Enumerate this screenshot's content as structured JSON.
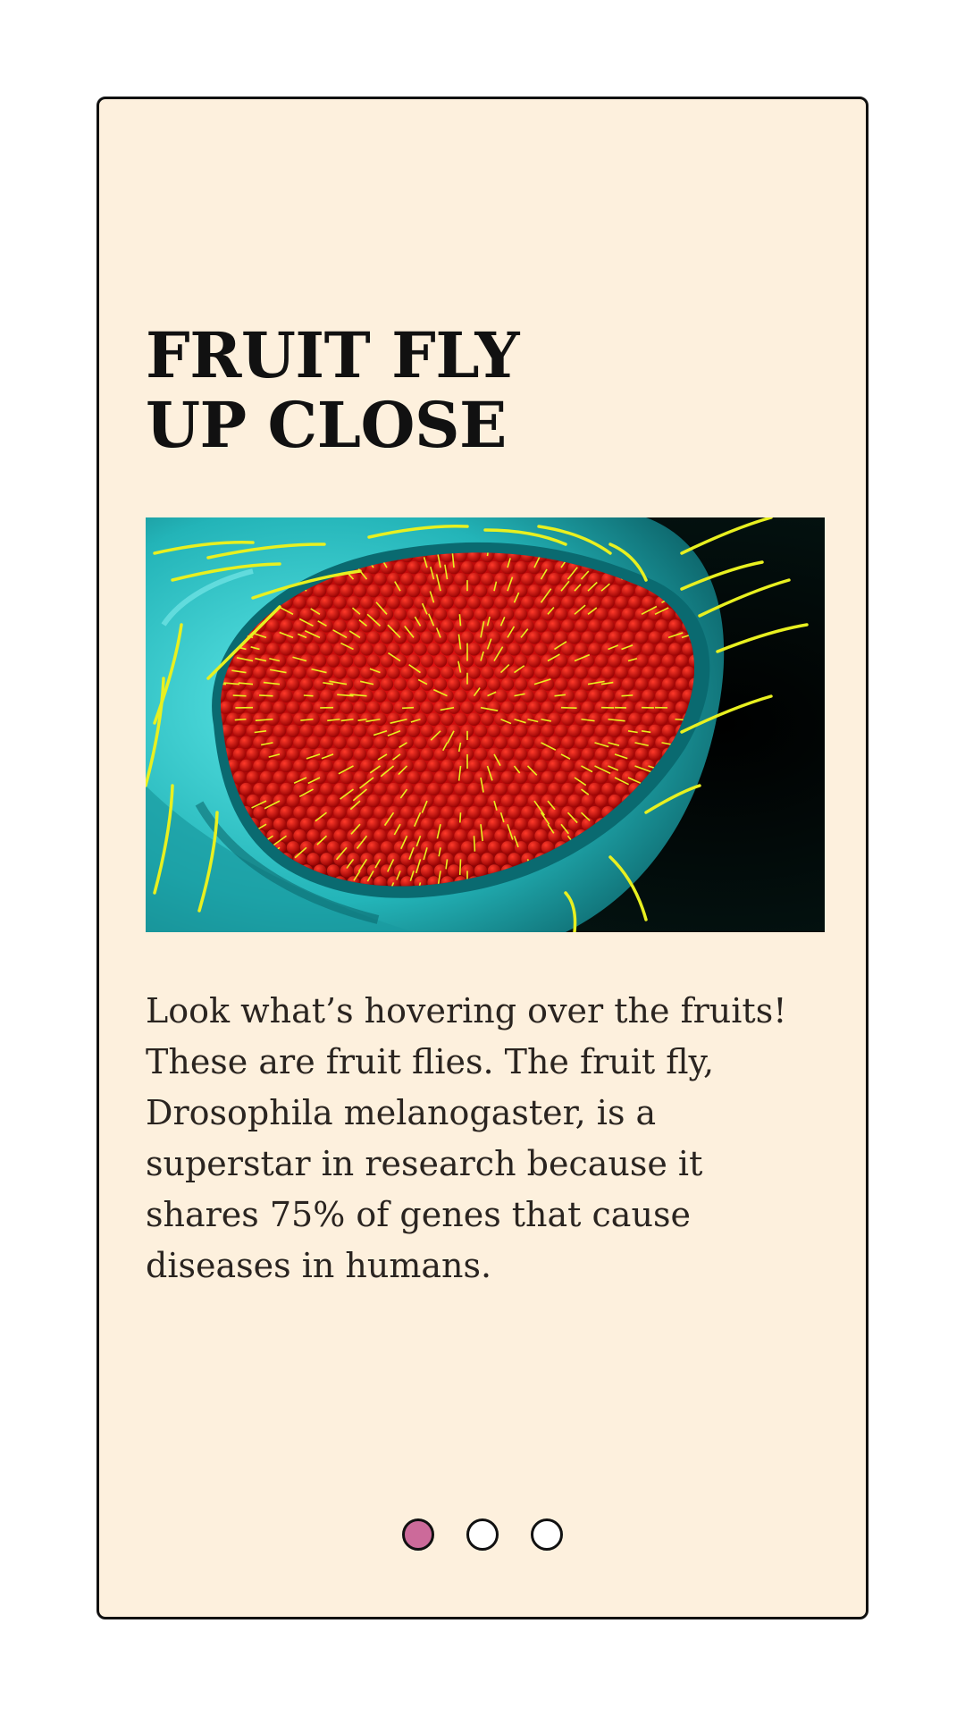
{
  "slide": {
    "title": "FRUIT FLY\nUP CLOSE",
    "image_alt": "Fruit fly compound eye close-up",
    "body": "Look what’s hovering over the fruits! These are fruit flies. The fruit fly, Drosophila melanogaster, is a superstar in research because it shares 75% of genes that cause diseases in humans."
  },
  "pagination": {
    "total": 3,
    "active_index": 0,
    "active_color": "#cc6a9a"
  },
  "colors": {
    "card_background": "#fdf0dd",
    "border": "#111111",
    "eye_red": "#c40a0a",
    "head_cyan": "#2ec8cc",
    "bristle_yellow": "#e8f020"
  }
}
